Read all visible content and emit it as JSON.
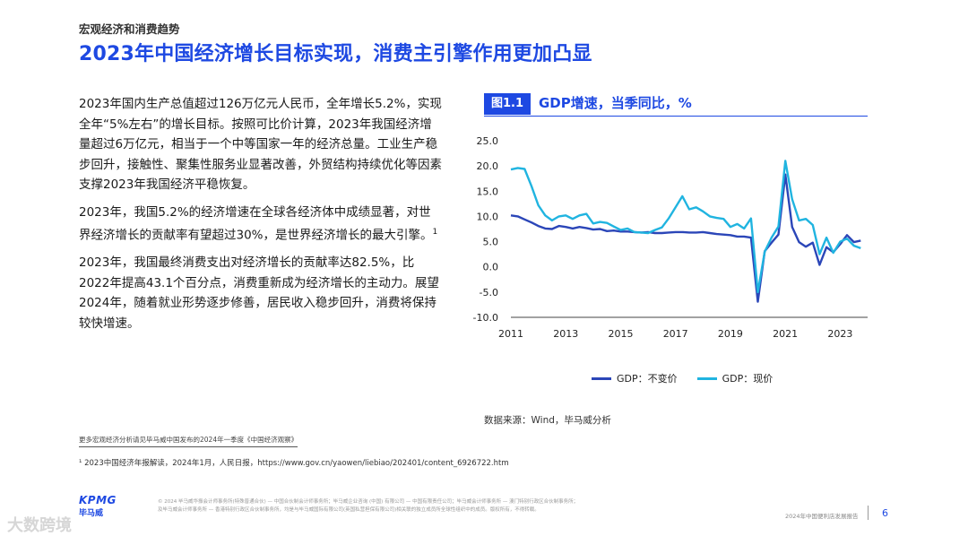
{
  "header": {
    "section": "宏观经济和消费趋势",
    "title": "2023年中国经济增长目标实现，消费主引擎作用更加凸显"
  },
  "body": {
    "p1": "2023年国内生产总值超过126万亿元人民币，全年增长5.2%，实现全年“5%左右”的增长目标。按照可比价计算，2023年我国经济增量超过6万亿元，相当于一个中等国家一年的经济总量。工业生产稳步回升，接触性、聚集性服务业显著改善，外贸结构持续优化等因素支撑2023年我国经济平稳恢复。",
    "p2": "2023年，我国5.2%的经济增速在全球各经济体中成绩显著，对世界经济增长的贡献率有望超过30%，是世界经济增长的最大引擎。",
    "p2_footnote_mark": "1",
    "p3": "2023年，我国最终消费支出对经济增长的贡献率达82.5%，比2022年提高43.1个百分点，消费重新成为经济增长的主动力。展望2024年，随着就业形势逐步修善，居民收入稳步回升，消费将保持较快增速。"
  },
  "figure": {
    "label": "图1.1",
    "title": "GDP增速，当季同比，%",
    "source": "数据来源：Wind，毕马威分析"
  },
  "chart_data": {
    "type": "line",
    "title": "GDP增速，当季同比，%",
    "ylim": [
      -10,
      25
    ],
    "yticks": [
      "25.0",
      "20.0",
      "15.0",
      "10.0",
      "5.0",
      "0.0",
      "-5.0",
      "-10.0"
    ],
    "xlim": [
      2011.0,
      2024.0
    ],
    "xticks": [
      "2011",
      "2013",
      "2015",
      "2017",
      "2019",
      "2021",
      "2023"
    ],
    "grid": false,
    "legend_position": "bottom",
    "series": [
      {
        "name": "GDP：不变价",
        "color": "#2b46b8",
        "x": [
          2011.0,
          2011.25,
          2011.5,
          2011.75,
          2012.0,
          2012.25,
          2012.5,
          2012.75,
          2013.0,
          2013.25,
          2013.5,
          2013.75,
          2014.0,
          2014.25,
          2014.5,
          2014.75,
          2015.0,
          2015.25,
          2015.5,
          2015.75,
          2016.0,
          2016.25,
          2016.5,
          2016.75,
          2017.0,
          2017.25,
          2017.5,
          2017.75,
          2018.0,
          2018.25,
          2018.5,
          2018.75,
          2019.0,
          2019.25,
          2019.5,
          2019.75,
          2020.0,
          2020.25,
          2020.5,
          2020.75,
          2021.0,
          2021.25,
          2021.5,
          2021.75,
          2022.0,
          2022.25,
          2022.5,
          2022.75,
          2023.0,
          2023.25,
          2023.5,
          2023.75
        ],
        "y": [
          10.2,
          10.0,
          9.4,
          8.8,
          8.1,
          7.6,
          7.5,
          8.1,
          7.9,
          7.6,
          7.9,
          7.7,
          7.4,
          7.5,
          7.1,
          7.2,
          7.0,
          7.0,
          6.9,
          6.8,
          6.9,
          6.7,
          6.7,
          6.8,
          6.9,
          6.9,
          6.8,
          6.8,
          6.9,
          6.7,
          6.5,
          6.4,
          6.3,
          6.0,
          6.0,
          5.8,
          -6.9,
          3.1,
          4.8,
          6.4,
          18.3,
          7.9,
          4.9,
          4.0,
          4.8,
          0.4,
          3.9,
          2.9,
          4.5,
          6.3,
          4.9,
          5.2
        ]
      },
      {
        "name": "GDP：现价",
        "color": "#20b4e0",
        "x": [
          2011.0,
          2011.25,
          2011.5,
          2011.75,
          2012.0,
          2012.25,
          2012.5,
          2012.75,
          2013.0,
          2013.25,
          2013.5,
          2013.75,
          2014.0,
          2014.25,
          2014.5,
          2014.75,
          2015.0,
          2015.25,
          2015.5,
          2015.75,
          2016.0,
          2016.25,
          2016.5,
          2016.75,
          2017.0,
          2017.25,
          2017.5,
          2017.75,
          2018.0,
          2018.25,
          2018.5,
          2018.75,
          2019.0,
          2019.25,
          2019.5,
          2019.75,
          2020.0,
          2020.25,
          2020.5,
          2020.75,
          2021.0,
          2021.25,
          2021.5,
          2021.75,
          2022.0,
          2022.25,
          2022.5,
          2022.75,
          2023.0,
          2023.25,
          2023.5,
          2023.75
        ],
        "y": [
          19.3,
          19.6,
          19.4,
          16.0,
          12.2,
          10.2,
          9.2,
          10.0,
          10.2,
          9.5,
          10.2,
          10.5,
          8.6,
          8.9,
          8.7,
          8.0,
          7.3,
          7.6,
          6.9,
          6.8,
          6.7,
          7.3,
          7.8,
          9.6,
          11.8,
          14.0,
          11.4,
          11.8,
          11.0,
          10.0,
          9.7,
          9.5,
          7.9,
          8.5,
          7.6,
          9.6,
          -5.0,
          3.0,
          5.8,
          8.0,
          21.0,
          13.4,
          9.2,
          9.5,
          8.3,
          2.5,
          5.8,
          2.8,
          5.0,
          5.6,
          4.2,
          3.7
        ]
      }
    ]
  },
  "footer": {
    "more_note": "更多宏观经济分析请见毕马威中国发布的2024年一季度《中国经济观察》",
    "footnote": "¹ 2023中国经济年报解读，2024年1月，人民日报，https://www.gov.cn/yaowen/liebiao/202401/content_6926722.htm",
    "logo_text": "KPMG",
    "logo_cn": "毕马威",
    "legal_line1": "© 2024 毕马威华振会计师事务所(特殊普通合伙) — 中国合伙制会计师事务所；毕马威企业咨询 (中国) 有限公司 — 中国有限责任公司；毕马威会计师事务所 — 澳门特别行政区合伙制事务所；",
    "legal_line2": "及毕马威会计师事务所 — 香港特别行政区合伙制事务所，均是与毕马威国际有限公司(英国私营担保有限公司)相关联的独立成员所全球性组织中的成员。版权所有，不得转载。",
    "report_name": "2024年中国便利店发展报告",
    "page_number": "6",
    "watermark": "大数跨境"
  }
}
